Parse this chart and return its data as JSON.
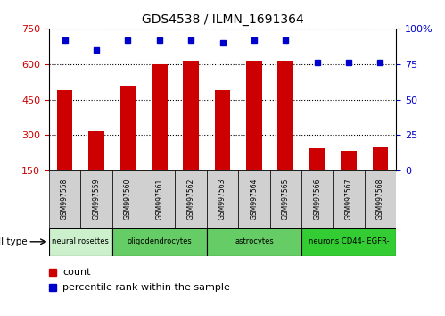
{
  "title": "GDS4538 / ILMN_1691364",
  "samples": [
    "GSM997558",
    "GSM997559",
    "GSM997560",
    "GSM997561",
    "GSM997562",
    "GSM997563",
    "GSM997564",
    "GSM997565",
    "GSM997566",
    "GSM997567",
    "GSM997568"
  ],
  "counts": [
    490,
    315,
    510,
    600,
    615,
    490,
    615,
    615,
    245,
    235,
    250
  ],
  "percentile_ranks": [
    92,
    85,
    92,
    92,
    92,
    90,
    92,
    92,
    76,
    76,
    76
  ],
  "cell_types": [
    {
      "label": "neural rosettes",
      "start": 0,
      "end": 2,
      "color": "#ccf0cc"
    },
    {
      "label": "oligodendrocytes",
      "start": 2,
      "end": 5,
      "color": "#66cc66"
    },
    {
      "label": "astrocytes",
      "start": 5,
      "end": 8,
      "color": "#66cc66"
    },
    {
      "label": "neurons CD44- EGFR-",
      "start": 8,
      "end": 11,
      "color": "#33cc33"
    }
  ],
  "ylim_left": [
    150,
    750
  ],
  "ylim_right": [
    0,
    100
  ],
  "yticks_left": [
    150,
    300,
    450,
    600,
    750
  ],
  "yticks_right": [
    0,
    25,
    50,
    75,
    100
  ],
  "bar_color": "#cc0000",
  "dot_color": "#0000cc",
  "bg_color": "#ffffff",
  "left_tick_color": "#cc0000",
  "right_tick_color": "#0000cc",
  "sample_box_color": "#d0d0d0",
  "legend_count_color": "#cc0000",
  "legend_pct_color": "#0000cc"
}
